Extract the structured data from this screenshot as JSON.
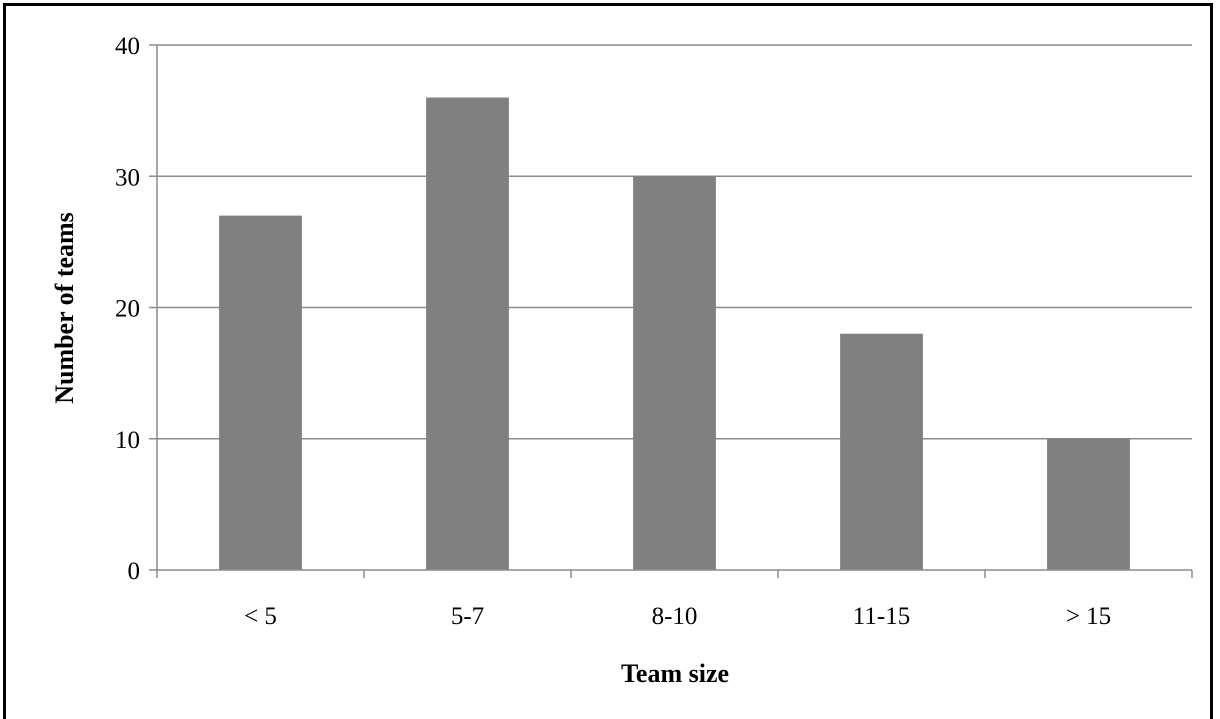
{
  "chart_data": {
    "type": "bar",
    "title": "",
    "xlabel": "Team size",
    "ylabel": "Number of teams",
    "categories": [
      "< 5",
      "5-7",
      "8-10",
      "11-15",
      "> 15"
    ],
    "values": [
      27,
      36,
      30,
      18,
      10
    ],
    "ylim": [
      0,
      40
    ],
    "yticks": [
      "0",
      "10",
      "20",
      "30",
      "40"
    ],
    "grid": true,
    "legend": "none",
    "bar_color": "#808080",
    "grid_color": "#8c8c8c"
  }
}
